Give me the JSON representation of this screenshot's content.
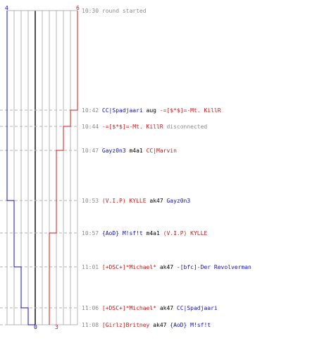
{
  "colors": {
    "team_blue": "#1010c8",
    "team_red": "#d01818",
    "time": "#8c8c8c",
    "grid": "#b4b4b4",
    "center_line": "#505050"
  },
  "score_labels": {
    "blue_start": "4",
    "red_start": "6",
    "blue_end": "0",
    "red_end": "3"
  },
  "events": [
    {
      "time": "10:30",
      "killer": "",
      "killer_team": "",
      "weapon": "",
      "victim": "",
      "victim_team": "",
      "extra": "round started"
    },
    {
      "time": "10:42",
      "killer": "CC|Spadjaari",
      "killer_team": "blue",
      "weapon": "aug",
      "victim": "-=[$*$]=-Mt. KillR",
      "victim_team": "red",
      "extra": ""
    },
    {
      "time": "10:44",
      "killer": "-=[$*$]=-Mt. KillR",
      "killer_team": "red",
      "weapon": "",
      "victim": "",
      "victim_team": "",
      "extra": "disconnected"
    },
    {
      "time": "10:47",
      "killer": "Gayz0n3",
      "killer_team": "blue",
      "weapon": "m4a1",
      "victim": "CC|Marvin",
      "victim_team": "red",
      "extra": ""
    },
    {
      "time": "10:53",
      "killer": "(V.I.P) KYLLE",
      "killer_team": "red",
      "weapon": "ak47",
      "victim": "Gayz0n3",
      "victim_team": "blue",
      "extra": ""
    },
    {
      "time": "10:57",
      "killer": "{AoD} M!sf!t",
      "killer_team": "blue",
      "weapon": "m4a1",
      "victim": "(V.I.P) KYLLE",
      "victim_team": "red",
      "extra": ""
    },
    {
      "time": "11:01",
      "killer": "[+DSC+]*Michael*",
      "killer_team": "red",
      "weapon": "ak47",
      "victim": "-[bfc]-Der Revolverman",
      "victim_team": "blue",
      "extra": ""
    },
    {
      "time": "11:06",
      "killer": "[+DSC+]*Michael*",
      "killer_team": "red",
      "weapon": "ak47",
      "victim": "CC|Spadjaari",
      "victim_team": "blue",
      "extra": ""
    },
    {
      "time": "11:08",
      "killer": "[Girlz]Britney",
      "killer_team": "red",
      "weapon": "ak47",
      "victim": "{AoD} M!sf!t",
      "victim_team": "blue",
      "extra": ""
    }
  ]
}
